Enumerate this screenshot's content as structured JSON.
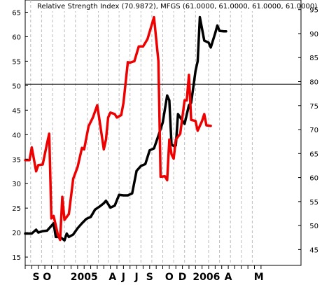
{
  "chart_data": {
    "type": "line",
    "title": "Relative Strength Index (70.9872), MFGS (61.0000, 61.0000, 61.0000, 61.0000)",
    "y_left": {
      "ticks": [
        15,
        20,
        25,
        30,
        35,
        40,
        45,
        50,
        55,
        60,
        65
      ],
      "range": [
        13.3,
        67.5
      ]
    },
    "y_right": {
      "ticks": [
        45,
        50,
        55,
        60,
        65,
        70,
        75,
        80,
        85,
        90,
        95
      ],
      "range": [
        41.7,
        97.0
      ]
    },
    "reference_line": {
      "axis": "left",
      "value": 50.3
    },
    "x_labels": [
      "S",
      "O",
      "2005",
      "A",
      "J",
      "J",
      "S",
      "O",
      "D",
      "2006",
      "A",
      "M"
    ],
    "x_count": 110,
    "x_label_index": [
      5,
      10,
      27,
      40,
      45,
      51,
      57,
      66,
      72,
      83,
      93,
      107
    ],
    "vgrid_index": [
      2.5,
      7.5,
      12.5,
      18,
      23,
      28.5,
      33.5,
      38,
      43,
      48,
      53,
      58,
      63,
      68,
      73,
      78,
      84,
      89,
      94,
      99,
      104
    ],
    "series": [
      {
        "color": "#000000",
        "axis": "left",
        "points": [
          [
            0,
            19.8
          ],
          [
            3,
            19.8
          ],
          [
            5,
            20.6
          ],
          [
            6,
            20.0
          ],
          [
            8,
            20.3
          ],
          [
            10,
            20.4
          ],
          [
            13,
            21.9
          ],
          [
            14,
            19.1
          ],
          [
            16,
            19.1
          ],
          [
            18,
            18.4
          ],
          [
            19,
            19.8
          ],
          [
            20,
            19.1
          ],
          [
            22,
            19.6
          ],
          [
            24,
            20.9
          ],
          [
            26,
            21.9
          ],
          [
            28,
            22.8
          ],
          [
            30,
            23.2
          ],
          [
            32,
            24.7
          ],
          [
            34,
            25.3
          ],
          [
            36,
            26.0
          ],
          [
            37,
            26.5
          ],
          [
            39,
            25.1
          ],
          [
            41,
            25.5
          ],
          [
            43,
            27.7
          ],
          [
            45,
            27.6
          ],
          [
            47,
            27.6
          ],
          [
            49,
            28.0
          ],
          [
            51,
            32.6
          ],
          [
            53,
            33.6
          ],
          [
            55,
            34.0
          ],
          [
            57,
            36.8
          ],
          [
            59,
            37.2
          ],
          [
            61,
            39.8
          ],
          [
            63,
            42.5
          ],
          [
            65,
            48.0
          ],
          [
            66,
            47.0
          ],
          [
            67,
            38.0
          ],
          [
            68,
            37.7
          ],
          [
            69,
            37.8
          ],
          [
            70,
            44.2
          ],
          [
            71,
            43.5
          ],
          [
            73,
            42.2
          ],
          [
            75,
            46.0
          ],
          [
            76,
            46.5
          ],
          [
            78,
            53.0
          ],
          [
            79,
            55.0
          ],
          [
            80,
            64.0
          ],
          [
            82,
            59.2
          ],
          [
            84,
            58.8
          ],
          [
            85,
            57.8
          ],
          [
            87,
            60.7
          ],
          [
            88,
            62.3
          ],
          [
            89,
            61.2
          ],
          [
            91,
            61.1
          ],
          [
            92,
            61.1
          ]
        ]
      },
      {
        "color": "#ee0000",
        "axis": "left",
        "points": [
          [
            0,
            34.8
          ],
          [
            2,
            34.8
          ],
          [
            3,
            37.4
          ],
          [
            5,
            32.5
          ],
          [
            6,
            33.8
          ],
          [
            8,
            33.9
          ],
          [
            10,
            38.2
          ],
          [
            11,
            40.2
          ],
          [
            12,
            22.9
          ],
          [
            13,
            23.4
          ],
          [
            15,
            19.5
          ],
          [
            16,
            18.5
          ],
          [
            17,
            27.3
          ],
          [
            18,
            22.6
          ],
          [
            20,
            23.8
          ],
          [
            22,
            31.0
          ],
          [
            24,
            33.4
          ],
          [
            26,
            37.3
          ],
          [
            27,
            37.0
          ],
          [
            29,
            41.7
          ],
          [
            31,
            43.5
          ],
          [
            33,
            46.0
          ],
          [
            34,
            43.0
          ],
          [
            36,
            37.0
          ],
          [
            37,
            39.0
          ],
          [
            38,
            43.5
          ],
          [
            39,
            44.5
          ],
          [
            41,
            44.2
          ],
          [
            42,
            43.5
          ],
          [
            44,
            44.0
          ],
          [
            45,
            46.5
          ],
          [
            47,
            54.8
          ],
          [
            48,
            54.7
          ],
          [
            50,
            55.0
          ],
          [
            52,
            58.0
          ],
          [
            54,
            58.0
          ],
          [
            56,
            59.5
          ],
          [
            59,
            64.0
          ],
          [
            61,
            55.0
          ],
          [
            62,
            31.4
          ],
          [
            64,
            31.5
          ],
          [
            65,
            30.7
          ],
          [
            66,
            39.0
          ],
          [
            67,
            36.0
          ],
          [
            68,
            35.1
          ],
          [
            69,
            39.0
          ],
          [
            71,
            40.2
          ],
          [
            73,
            47.0
          ],
          [
            74,
            47.0
          ],
          [
            75,
            52.2
          ],
          [
            76,
            43.0
          ],
          [
            78,
            42.8
          ],
          [
            79,
            40.8
          ],
          [
            81,
            42.8
          ],
          [
            82,
            44.2
          ],
          [
            83,
            41.9
          ],
          [
            85,
            41.8
          ]
        ]
      }
    ]
  }
}
